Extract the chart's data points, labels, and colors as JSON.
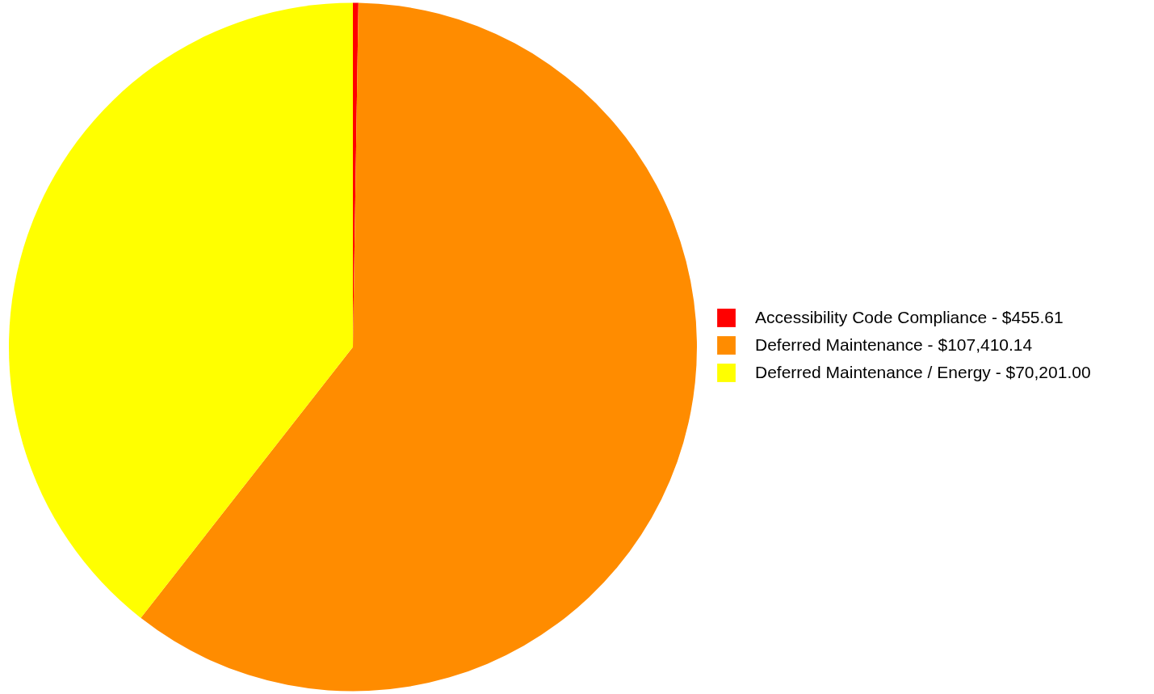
{
  "chart_data": {
    "type": "pie",
    "categories": [
      "Accessibility Code Compliance",
      "Deferred Maintenance",
      "Deferred Maintenance / Energy"
    ],
    "values": [
      455.61,
      107410.14,
      70201.0
    ],
    "value_labels": [
      "$455.61",
      "$107,410.14",
      "$70,201.00"
    ],
    "colors": [
      "#ff0000",
      "#ff8c00",
      "#ffff00"
    ],
    "legend": "right"
  }
}
